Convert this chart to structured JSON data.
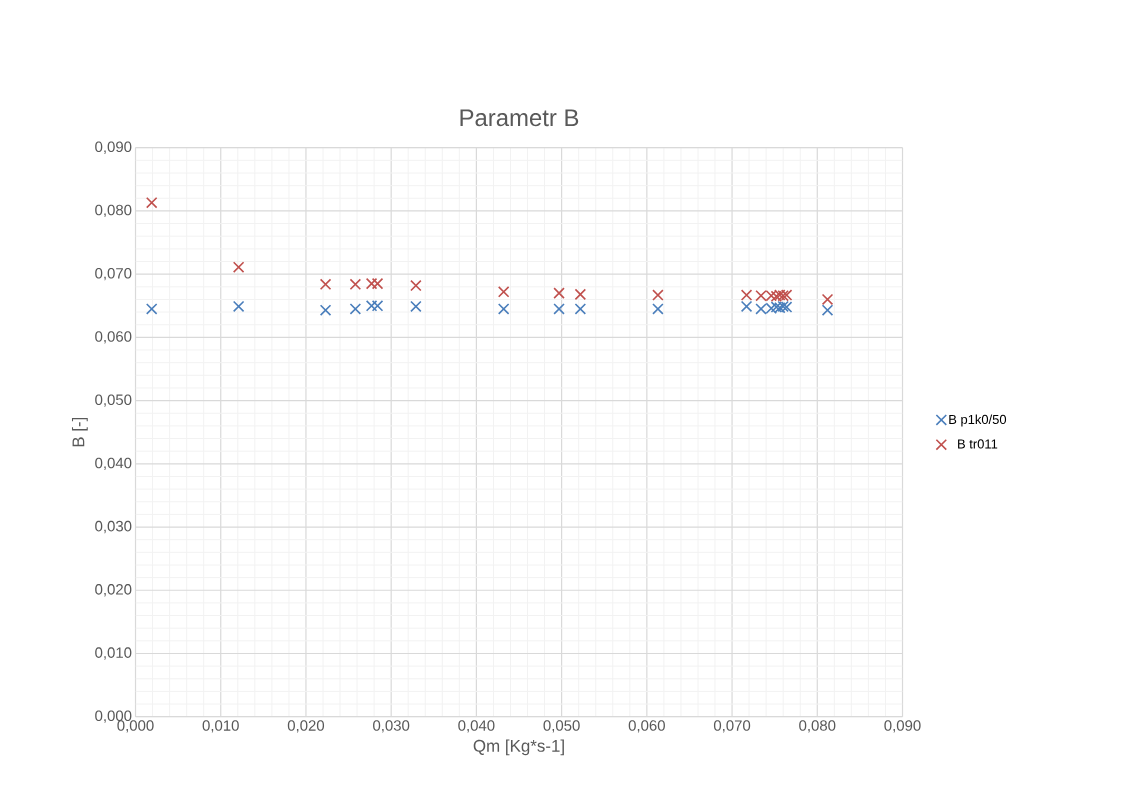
{
  "chart_data": {
    "type": "scatter",
    "title": "Parametr B",
    "xlabel": "Qm [Kg*s-1]",
    "ylabel": "B [-]",
    "series": [
      {
        "name": "B p1k0/50",
        "color": "#4a7ebb",
        "x": [
          0.0019,
          0.0121,
          0.0223,
          0.0258,
          0.0277,
          0.0284,
          0.0329,
          0.0432,
          0.0497,
          0.0522,
          0.0613,
          0.0717,
          0.0734,
          0.0746,
          0.0752,
          0.0756,
          0.076,
          0.0764,
          0.0812
        ],
        "values": [
          0.0645,
          0.0649,
          0.0643,
          0.0645,
          0.065,
          0.065,
          0.0649,
          0.0645,
          0.0645,
          0.0645,
          0.0645,
          0.0649,
          0.0645,
          0.0646,
          0.0648,
          0.0647,
          0.0649,
          0.0648,
          0.0643
        ]
      },
      {
        "name": "B tr011",
        "color": "#c0504d",
        "x": [
          0.0019,
          0.0121,
          0.0223,
          0.0258,
          0.0277,
          0.0284,
          0.0329,
          0.0432,
          0.0497,
          0.0522,
          0.0613,
          0.0717,
          0.0734,
          0.0746,
          0.0752,
          0.0756,
          0.076,
          0.0764,
          0.0812
        ],
        "values": [
          0.0813,
          0.0711,
          0.0684,
          0.0684,
          0.0685,
          0.0685,
          0.0682,
          0.0672,
          0.067,
          0.0668,
          0.0667,
          0.0667,
          0.0666,
          0.0666,
          0.0665,
          0.0667,
          0.0666,
          0.0667,
          0.066
        ]
      }
    ],
    "xlim": [
      0,
      0.09
    ],
    "ylim": [
      0,
      0.09
    ],
    "xticks": [
      {
        "value": 0,
        "label": "0,000"
      },
      {
        "value": 0.01,
        "label": "0,010"
      },
      {
        "value": 0.02,
        "label": "0,020"
      },
      {
        "value": 0.03,
        "label": "0,030"
      },
      {
        "value": 0.04,
        "label": "0,040"
      },
      {
        "value": 0.05,
        "label": "0,050"
      },
      {
        "value": 0.06,
        "label": "0,060"
      },
      {
        "value": 0.07,
        "label": "0,070"
      },
      {
        "value": 0.08,
        "label": "0,080"
      },
      {
        "value": 0.09,
        "label": "0,090"
      }
    ],
    "yticks": [
      {
        "value": 0,
        "label": "0,000"
      },
      {
        "value": 0.01,
        "label": "0,010"
      },
      {
        "value": 0.02,
        "label": "0,020"
      },
      {
        "value": 0.03,
        "label": "0,030"
      },
      {
        "value": 0.04,
        "label": "0,040"
      },
      {
        "value": 0.05,
        "label": "0,050"
      },
      {
        "value": 0.06,
        "label": "0,060"
      },
      {
        "value": 0.07,
        "label": "0,070"
      },
      {
        "value": 0.08,
        "label": "0,080"
      },
      {
        "value": 0.09,
        "label": "0,090"
      }
    ],
    "grid": true,
    "legend": "right",
    "marker": "cross"
  }
}
